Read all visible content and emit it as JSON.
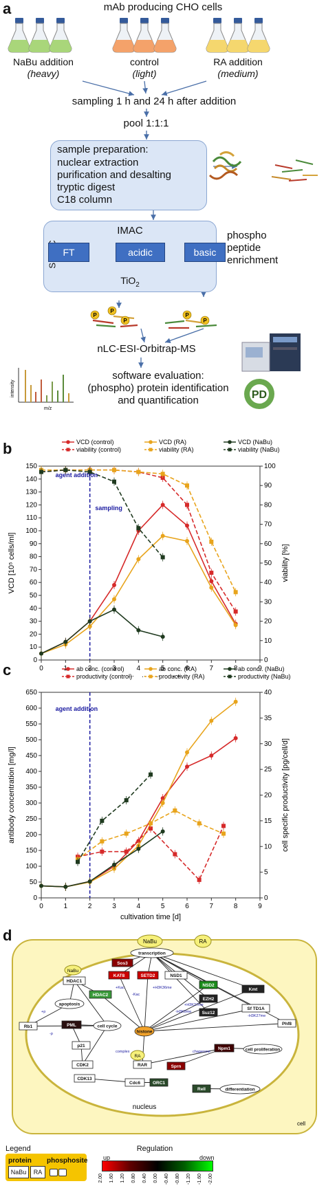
{
  "panel_a": {
    "letter": "a",
    "title": "mAb producing CHO cells",
    "groups": [
      {
        "name": "NaBu addition",
        "sub": "heavy",
        "color": "#a9d67a"
      },
      {
        "name": "control",
        "sub": "light",
        "color": "#f4a26a"
      },
      {
        "name": "RA addition",
        "sub": "medium",
        "color": "#f5d76e"
      }
    ],
    "sampling": "sampling 1 h and 24 h after addition",
    "pool": "pool 1:1:1",
    "prep_title": "sample preparation:",
    "prep_lines": [
      "nuclear extraction",
      "purification and desalting",
      "tryptic digest",
      "C18 column"
    ],
    "simac": "SIMAC",
    "imac": "IMAC",
    "fractions": [
      "FT",
      "acidic",
      "basic"
    ],
    "tio2": "TiO",
    "tio2_sub": "2",
    "enrichment": [
      "phospho",
      "peptide",
      "enrichment"
    ],
    "phospho_marker": "P",
    "ms": "nLC-ESI-Orbitrap-MS",
    "software_lines": [
      "software evaluation:",
      "(phospho) protein identification",
      "and quantification"
    ],
    "spectrum_ylabel": "intensity",
    "spectrum_xlabel": "m/z",
    "pd_logo": "PD"
  },
  "panel_b": {
    "letter": "b"
  },
  "panel_c": {
    "letter": "c"
  },
  "panel_d": {
    "letter": "d",
    "ligands": [
      "NaBu",
      "RA"
    ],
    "nodes": [
      "Sos3",
      "KAT8",
      "SETD2",
      "NSD1",
      "NSD2",
      "EZH2",
      "Suz12",
      "Kmt",
      "Sf TD1A",
      "Phf8",
      "HDAC1",
      "HDAC2",
      "apoptosis",
      "Rb1",
      "PML",
      "cell cycle",
      "p21",
      "CDK2",
      "CDK13",
      "Cdc6",
      "ORC1",
      "RAR",
      "Sprn",
      "Npm1",
      "cell proliferation",
      "Rell",
      "differentiation",
      "transcription",
      "histone"
    ],
    "nucleus": "nucleus",
    "cell": "cell",
    "edge_labels": [
      "+Kac",
      "+H3K36me",
      "-Kac",
      "+H3K27me",
      "-H3K9me",
      "-H3K27me",
      "complex",
      "chaperone",
      "+p",
      "-p"
    ],
    "legend_title": "Legend",
    "legend_protein": "protein",
    "legend_phosphosite": "phosphosite",
    "legend_examples": [
      "NaBu",
      "RA"
    ],
    "regulation_title": "Regulation",
    "regulation_up": "up",
    "regulation_down": "down",
    "regulation_ticks": [
      "2.00",
      "1.60",
      "1.20",
      "0.80",
      "0.40",
      "0.00",
      "-0.40",
      "-0.80",
      "-1.20",
      "-1.60",
      "-2.00"
    ]
  },
  "chart_data": [
    {
      "type": "line",
      "panel": "b",
      "xlabel": "cultivation time [d]",
      "ylabel": "VCD [10⁵ cells/ml]",
      "ylabel_right": "viability [%]",
      "xlim": [
        0,
        9
      ],
      "ylim": [
        0,
        150
      ],
      "ylim_right": [
        0,
        100
      ],
      "xticks": [
        0,
        1,
        2,
        3,
        4,
        5,
        6,
        7,
        8,
        9
      ],
      "yticks": [
        0,
        10,
        20,
        30,
        40,
        50,
        60,
        70,
        80,
        90,
        100,
        110,
        120,
        130,
        140,
        150
      ],
      "yticks_right": [
        0,
        10,
        20,
        30,
        40,
        50,
        60,
        70,
        80,
        90,
        100
      ],
      "grid": false,
      "legend": "top",
      "annotations": [
        {
          "text": "agent addition",
          "x": 2
        },
        {
          "text": "sampling",
          "x": 2.5
        }
      ],
      "series": [
        {
          "name": "VCD (control)",
          "axis": "left",
          "color": "#d62a2a",
          "dash": false,
          "marker": "circle",
          "x": [
            0,
            1,
            2,
            3,
            4,
            5,
            6,
            7,
            8
          ],
          "y": [
            5,
            14,
            30,
            58,
            100,
            120,
            104,
            61,
            28
          ]
        },
        {
          "name": "VCD (RA)",
          "axis": "left",
          "color": "#e8a41c",
          "dash": false,
          "marker": "circle",
          "x": [
            0,
            1,
            2,
            3,
            4,
            5,
            6,
            7,
            8
          ],
          "y": [
            5,
            12,
            26,
            47,
            78,
            96,
            92,
            56,
            27
          ]
        },
        {
          "name": "VCD (NaBu)",
          "axis": "left",
          "color": "#1f3a1f",
          "dash": false,
          "marker": "circle",
          "x": [
            0,
            1,
            2,
            3,
            4,
            5
          ],
          "y": [
            5,
            14,
            30,
            39,
            23,
            18
          ]
        },
        {
          "name": "viability (control)",
          "axis": "right",
          "color": "#d62a2a",
          "dash": true,
          "marker": "square",
          "x": [
            0,
            1,
            2,
            3,
            4,
            5,
            6,
            7,
            8
          ],
          "y": [
            97,
            98,
            98,
            98,
            97,
            94,
            80,
            45,
            25
          ]
        },
        {
          "name": "viability (RA)",
          "axis": "right",
          "color": "#e8a41c",
          "dash": true,
          "marker": "square",
          "x": [
            0,
            1,
            2,
            3,
            4,
            5,
            6,
            7,
            8
          ],
          "y": [
            98,
            98,
            98,
            98,
            97,
            96,
            90,
            61,
            35
          ]
        },
        {
          "name": "viability (NaBu)",
          "axis": "right",
          "color": "#1f3a1f",
          "dash": true,
          "marker": "square",
          "x": [
            0,
            1,
            2,
            3,
            4,
            5
          ],
          "y": [
            97,
            98,
            97,
            92,
            68,
            53
          ]
        }
      ]
    },
    {
      "type": "line",
      "panel": "c",
      "xlabel": "cultivation time [d]",
      "ylabel": "antibody concentration [mg/l]",
      "ylabel_right": "cell specific productivity [pg/cell/d]",
      "xlim": [
        0,
        9
      ],
      "ylim": [
        0,
        650
      ],
      "ylim_right": [
        0,
        40
      ],
      "xticks": [
        0,
        1,
        2,
        3,
        4,
        5,
        6,
        7,
        8,
        9
      ],
      "yticks": [
        0,
        50,
        100,
        150,
        200,
        250,
        300,
        350,
        400,
        450,
        500,
        550,
        600,
        650
      ],
      "yticks_right": [
        0,
        5,
        10,
        15,
        20,
        25,
        30,
        35,
        40
      ],
      "grid": false,
      "legend": "top",
      "annotations": [
        {
          "text": "agent addition",
          "x": 2
        }
      ],
      "series": [
        {
          "name": "ab conc. (control)",
          "axis": "left",
          "color": "#d62a2a",
          "dash": false,
          "marker": "circle",
          "x": [
            0,
            1,
            2,
            3,
            4,
            5,
            6,
            7,
            8
          ],
          "y": [
            38,
            35,
            52,
            100,
            180,
            315,
            415,
            450,
            505
          ]
        },
        {
          "name": "ab conc. (RA)",
          "axis": "left",
          "color": "#e8a41c",
          "dash": false,
          "marker": "circle",
          "x": [
            0,
            1,
            2,
            3,
            4,
            5,
            6,
            7,
            8
          ],
          "y": [
            38,
            35,
            50,
            92,
            165,
            300,
            460,
            560,
            620
          ]
        },
        {
          "name": "ab conc.. (NaBu)",
          "axis": "left",
          "color": "#1f3a1f",
          "dash": false,
          "marker": "circle",
          "x": [
            0,
            1,
            2,
            3,
            4,
            5
          ],
          "y": [
            38,
            35,
            52,
            105,
            155,
            210
          ]
        },
        {
          "name": "productivity (control)",
          "axis": "right",
          "color": "#d62a2a",
          "dash": true,
          "marker": "square",
          "x": [
            1.5,
            2.5,
            3.5,
            4.5,
            5.5,
            6.5,
            7.5
          ],
          "y": [
            8,
            9,
            9,
            13.5,
            8.5,
            3.5,
            14
          ]
        },
        {
          "name": "productivity (RA)",
          "axis": "right",
          "color": "#e8a41c",
          "dash": true,
          "marker": "square",
          "x": [
            1.5,
            2.5,
            3.5,
            4.5,
            5.5,
            6.5,
            7.5
          ],
          "y": [
            7.5,
            11,
            12.5,
            14.5,
            17,
            14.5,
            12.5
          ]
        },
        {
          "name": "productivity (NaBu)",
          "axis": "right",
          "color": "#1f3a1f",
          "dash": true,
          "marker": "square",
          "x": [
            1.5,
            2.5,
            3.5,
            4.5
          ],
          "y": [
            7,
            15,
            19,
            24
          ]
        }
      ]
    }
  ]
}
